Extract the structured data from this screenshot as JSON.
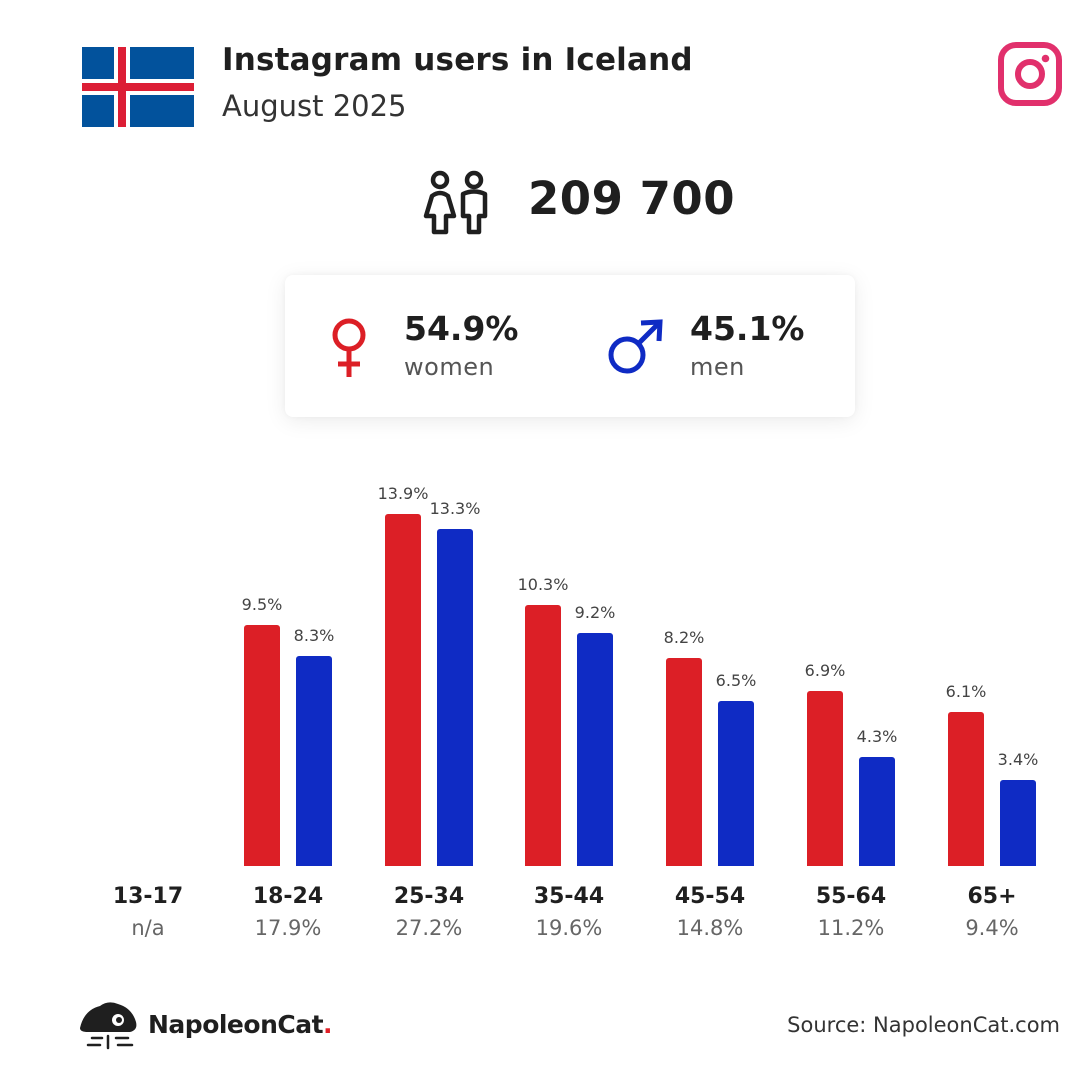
{
  "header": {
    "title": "Instagram users in Iceland",
    "subtitle": "August 2025"
  },
  "total_users": "209 700",
  "gender": {
    "women_pct": "54.9%",
    "women_label": "women",
    "men_pct": "45.1%",
    "men_label": "men"
  },
  "colors": {
    "women": "#dc1f26",
    "men": "#0f2bc4",
    "instagram": "#e1306c"
  },
  "chart_data": {
    "type": "bar",
    "categories": [
      "13-17",
      "18-24",
      "25-34",
      "35-44",
      "45-54",
      "55-64",
      "65+"
    ],
    "category_totals": [
      "n/a",
      "17.9%",
      "27.2%",
      "19.6%",
      "14.8%",
      "11.2%",
      "9.4%"
    ],
    "series": [
      {
        "name": "women",
        "values": [
          null,
          9.5,
          13.9,
          10.3,
          8.2,
          6.9,
          6.1
        ]
      },
      {
        "name": "men",
        "values": [
          null,
          8.3,
          13.3,
          9.2,
          6.5,
          4.3,
          3.4
        ]
      }
    ],
    "value_labels": [
      [
        "",
        "9.5%",
        "13.9%",
        "10.3%",
        "8.2%",
        "6.9%",
        "6.1%"
      ],
      [
        "",
        "8.3%",
        "13.3%",
        "9.2%",
        "6.5%",
        "4.3%",
        "3.4%"
      ]
    ],
    "ylim": [
      0,
      13.9
    ]
  },
  "footer": {
    "brand": "NapoleonCat",
    "brand_dot": ".",
    "source": "Source: NapoleonCat.com"
  }
}
